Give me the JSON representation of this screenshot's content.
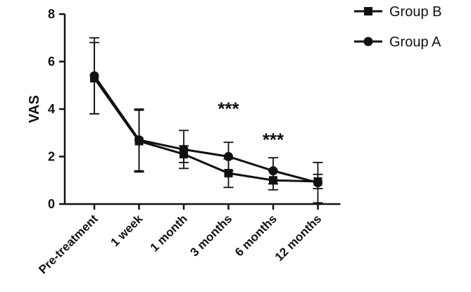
{
  "chart_data": {
    "type": "line",
    "categories": [
      "Pre-treatment",
      "1 week",
      "1 month",
      "3 months",
      "6 months",
      "12 months"
    ],
    "ylabel": "VAS",
    "xlabel": "",
    "ylim": [
      0,
      8
    ],
    "yticks": [
      0,
      2,
      4,
      6,
      8
    ],
    "grid": false,
    "legend_position": "top-right",
    "series": [
      {
        "name": "Group B",
        "marker": "square",
        "values": [
          5.3,
          2.65,
          2.1,
          1.3,
          1.0,
          0.95
        ],
        "error": [
          1.5,
          1.3,
          0.35,
          0.6,
          0.4,
          0.3
        ]
      },
      {
        "name": "Group A",
        "marker": "circle",
        "values": [
          5.4,
          2.7,
          2.3,
          2.0,
          1.4,
          0.9
        ],
        "error": [
          1.6,
          1.3,
          0.8,
          0.6,
          0.55,
          0.85
        ]
      }
    ],
    "annotations": [
      {
        "text": "***",
        "category": "3 months",
        "y": 4.1
      },
      {
        "text": "***",
        "category": "6 months",
        "y": 2.8
      }
    ]
  }
}
